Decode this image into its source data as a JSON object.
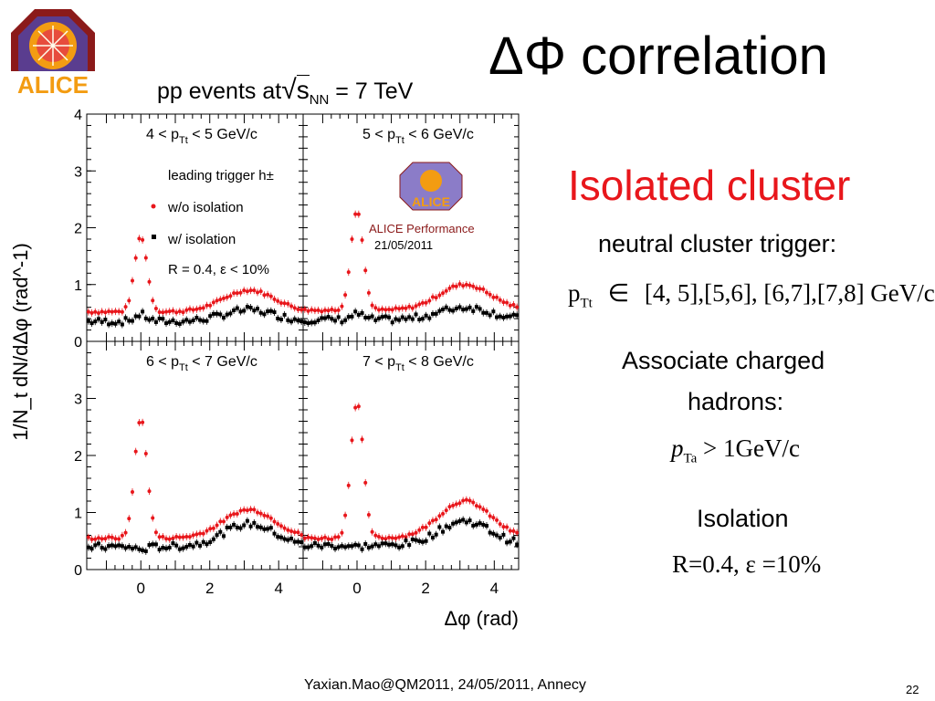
{
  "slide": {
    "title": "ΔΦ correlation",
    "chart_heading_pre": "pp events at",
    "chart_heading_s": "s",
    "chart_heading_sub": "NN",
    "chart_heading_post": " = 7 TeV",
    "isolated_cluster": "Isolated   cluster",
    "trigger_line": "neutral cluster trigger:",
    "pt_range_p": "p",
    "pt_range_sub": "Tt",
    "pt_range_in": "∈",
    "pt_range_values": "[4, 5],[5,6], [6,7],[7,8] GeV/c",
    "associate_line1": "Associate charged",
    "associate_line2": "hadrons:",
    "pta_p": "p",
    "pta_sub": "Ta",
    "pta_rest": " > 1GeV/c",
    "isolation_label": "Isolation",
    "isolation_values": "R=0.4, ε =10%",
    "footer": "Yaxian.Mao@QM2011, 24/05/2011, Annecy",
    "page_number": "22",
    "logo_text": "ALICE"
  },
  "colors": {
    "red": "#e8161b",
    "black": "#000000",
    "alice_red": "#8b1a1a",
    "alice_orange": "#f39c12"
  },
  "chart_data": {
    "type": "scatter",
    "ylabel": "1/N_t dN/dΔφ (rad^-1)",
    "xlabel": "Δφ (rad)",
    "xlim": [
      -1.57,
      4.71
    ],
    "ylim": [
      0,
      4
    ],
    "xticks": [
      "0",
      "2",
      "4"
    ],
    "yticks": [
      "0",
      "1",
      "2",
      "3",
      "4"
    ],
    "yticks_lower": [
      "0",
      "1",
      "2",
      "3"
    ],
    "legend": {
      "header": "leading trigger h±",
      "series_red": "w/o isolation",
      "series_black": "w/ isolation",
      "cone": "R = 0.4, ε < 10%"
    },
    "performance_label": "ALICE Performance",
    "performance_date": "21/05/2011",
    "panels": [
      {
        "label_pre": "4 < p",
        "label_sub": "Tt",
        "label_post": " < 5 GeV/c",
        "near_red": 1.85,
        "away_red": 0.9,
        "base_red": 0.52,
        "near_black": 0.47,
        "away_black": 0.55,
        "base_black": 0.35
      },
      {
        "label_pre": "5 < p",
        "label_sub": "Tt",
        "label_post": " < 6 GeV/c",
        "near_red": 2.3,
        "away_red": 1.0,
        "base_red": 0.55,
        "near_black": 0.48,
        "away_black": 0.6,
        "base_black": 0.38
      },
      {
        "label_pre": "6 < p",
        "label_sub": "Tt",
        "label_post": " < 7 GeV/c",
        "near_red": 2.65,
        "away_red": 1.05,
        "base_red": 0.55,
        "near_black": 0.35,
        "away_black": 0.8,
        "base_black": 0.4
      },
      {
        "label_pre": "7 < p",
        "label_sub": "Tt",
        "label_post": " < 8 GeV/c",
        "near_red": 2.95,
        "away_red": 1.2,
        "base_red": 0.55,
        "near_black": 0.4,
        "away_black": 0.85,
        "base_black": 0.42
      }
    ],
    "series": [
      {
        "name": "w/o isolation",
        "color": "#e8161b"
      },
      {
        "name": "w/ isolation",
        "color": "#000000"
      }
    ]
  }
}
